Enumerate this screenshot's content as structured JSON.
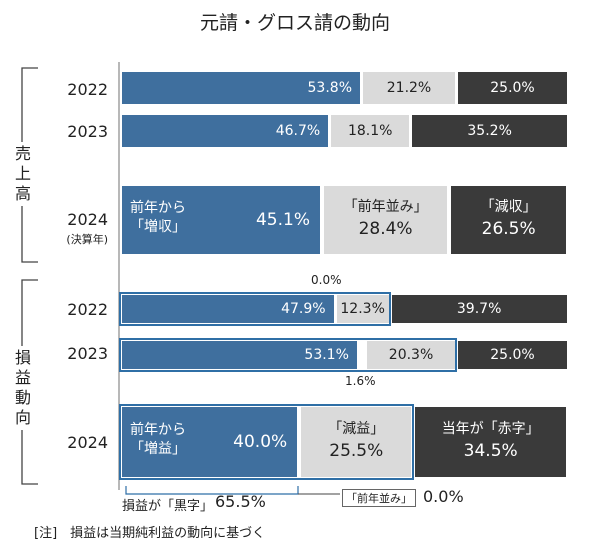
{
  "title": "元請・グロス請の動向",
  "groups": [
    {
      "label": "売上高"
    },
    {
      "label": "損益動向"
    }
  ],
  "rows": [
    {
      "year": "2022"
    },
    {
      "year": "2023"
    },
    {
      "year": "2024",
      "sub": "(決算年)"
    },
    {
      "year": "2022"
    },
    {
      "year": "2023"
    },
    {
      "year": "2024"
    }
  ],
  "bar_labels": {
    "sales_up": [
      "前年から",
      "「増収」"
    ],
    "sales_flat": "「前年並み」",
    "sales_down": "「減収」",
    "profit_up": [
      "前年から",
      "「増益」"
    ],
    "profit_down": "「減益」",
    "profit_red": "当年が「赤字」"
  },
  "annotations": {
    "above_2022": "0.0%",
    "below_2023": "1.6%",
    "black_label": "損益が「黒字」",
    "black_value": "65.5%",
    "flat_label": "「前年並み」",
    "flat_value": "0.0%"
  },
  "note": "[注]　損益は当期純利益の動向に基づく",
  "colors": {
    "blue": "#3f6f9e",
    "light": "#dadada",
    "dark": "#3a3a3a",
    "frame": "#2f6fa6"
  },
  "chart_data": {
    "type": "bar",
    "orientation": "horizontal",
    "stacked": true,
    "title": "元請・グロス請の動向",
    "xlim": [
      0,
      100
    ],
    "unit": "%",
    "categories": [
      "売上高 2022",
      "売上高 2023",
      "売上高 2024 (決算年)",
      "損益動向 2022",
      "損益動向 2023",
      "損益動向 2024"
    ],
    "rows": [
      {
        "segments": [
          53.8,
          21.2,
          25.0
        ]
      },
      {
        "segments": [
          46.7,
          18.1,
          35.2
        ]
      },
      {
        "segments": [
          45.1,
          28.4,
          26.5
        ],
        "labels": [
          "前年から「増収」",
          "「前年並み」",
          "「減収」"
        ]
      },
      {
        "segments": [
          47.9,
          12.3,
          0.0,
          39.7
        ]
      },
      {
        "segments": [
          53.1,
          1.6,
          20.3,
          25.0
        ]
      },
      {
        "segments": [
          40.0,
          25.5,
          0.0,
          34.5
        ],
        "labels": [
          "前年から「増益」",
          "「減益」",
          "「前年並み」",
          "当年が「赤字」"
        ]
      }
    ]
  }
}
